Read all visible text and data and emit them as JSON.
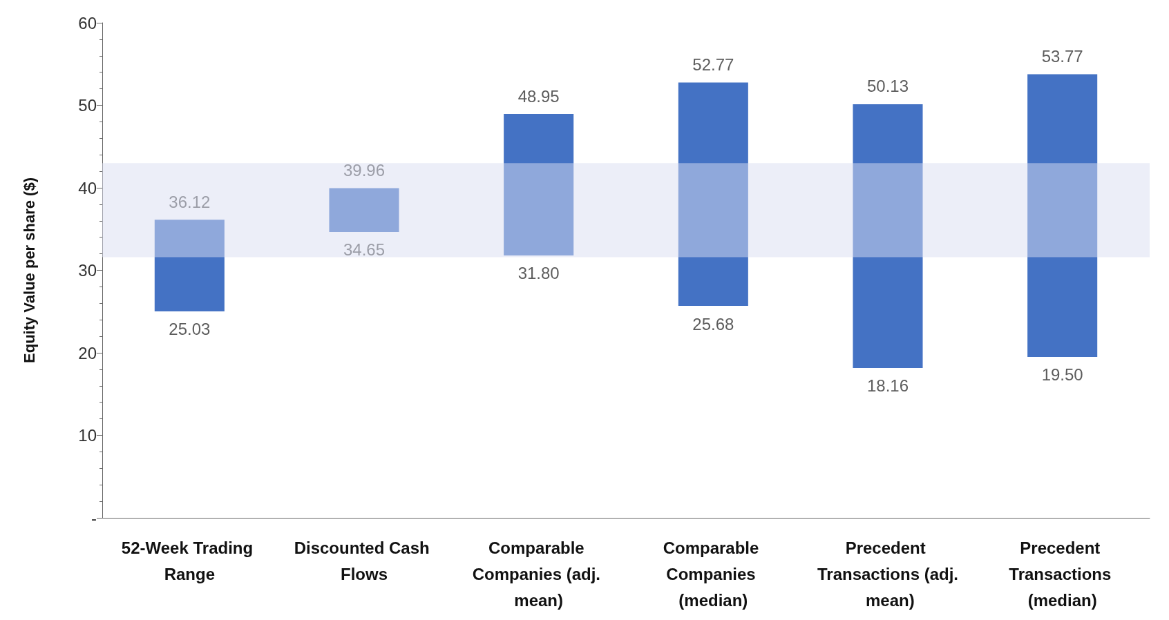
{
  "chart_data": {
    "type": "bar",
    "ylabel": "Equity Value per share ($)",
    "categories": [
      "52-Week Trading Range",
      "Discounted Cash Flows",
      "Comparable Companies (adj. mean)",
      "Comparable Companies (median)",
      "Precedent Transactions (adj. mean)",
      "Precedent Transactions (median)"
    ],
    "base": [
      25.03,
      34.65,
      31.8,
      25.68,
      18.16,
      19.5
    ],
    "values": [
      11.09,
      5.31,
      17.15,
      27.09,
      31.97,
      34.27
    ],
    "color": "#4472c4",
    "ylim": [
      0,
      60
    ],
    "yticks": [
      {
        "value": 0,
        "label": "-"
      },
      10,
      20,
      30,
      40,
      50,
      60
    ],
    "grid": false,
    "bands": [
      {
        "axis": "y",
        "from": 31.6,
        "to": 43.0,
        "color": "#d9def2"
      }
    ],
    "annotations": [
      {
        "text": "36.12",
        "x": "52-Week Trading Range",
        "y": 36.12
      },
      {
        "text": "25.03",
        "x": "52-Week Trading Range",
        "y": 25.03
      },
      {
        "text": "39.96",
        "x": "Discounted Cash Flows",
        "y": 39.96
      },
      {
        "text": "34.65",
        "x": "Discounted Cash Flows",
        "y": 34.65
      },
      {
        "text": "48.95",
        "x": "Comparable Companies (adj. mean)",
        "y": 48.95
      },
      {
        "text": "31.80",
        "x": "Comparable Companies (adj. mean)",
        "y": 31.8
      },
      {
        "text": "52.77",
        "x": "Comparable Companies (median)",
        "y": 52.77
      },
      {
        "text": "25.68",
        "x": "Comparable Companies (median)",
        "y": 25.68
      },
      {
        "text": "50.13",
        "x": "Precedent Transactions (adj. mean)",
        "y": 50.13
      },
      {
        "text": "18.16",
        "x": "Precedent Transactions (adj. mean)",
        "y": 18.16
      },
      {
        "text": "53.77",
        "x": "Precedent Transactions (median)",
        "y": 53.77
      },
      {
        "text": "19.50",
        "x": "Precedent Transactions (median)",
        "y": 19.5
      }
    ]
  }
}
